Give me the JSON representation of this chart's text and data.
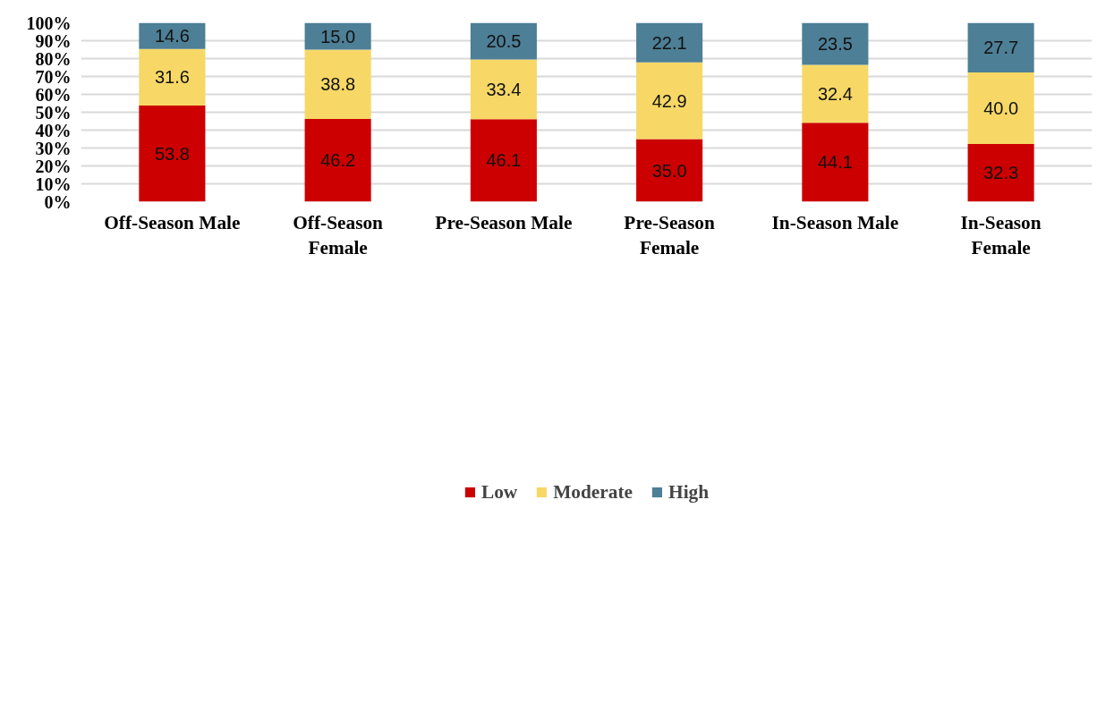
{
  "chart_data": {
    "type": "bar",
    "stacked": true,
    "categories": [
      "Off-Season Male",
      "Off-Season Female",
      "Pre-Season Male",
      "Pre-Season Female",
      "In-Season Male",
      "In-Season Female"
    ],
    "series": [
      {
        "name": "Low",
        "color": "#cc0000",
        "values": [
          53.8,
          46.2,
          46.1,
          35.0,
          44.1,
          32.3
        ],
        "value_labels": [
          "53.8",
          "46.2",
          "46.1",
          "35.0",
          "44.1",
          "32.3"
        ]
      },
      {
        "name": "Moderate",
        "color": "#f7d866",
        "values": [
          31.6,
          38.8,
          33.4,
          42.9,
          32.4,
          40.0
        ],
        "value_labels": [
          "31.6",
          "38.8",
          "33.4",
          "42.9",
          "32.4",
          "40.0"
        ]
      },
      {
        "name": "High",
        "color": "#4d7f96",
        "values": [
          14.6,
          15.0,
          20.5,
          22.1,
          23.5,
          27.7
        ],
        "value_labels": [
          "14.6",
          "15.0",
          "20.5",
          "22.1",
          "23.5",
          "27.7"
        ]
      }
    ],
    "ylim": [
      0,
      100
    ],
    "yticks": [
      {
        "value": 0,
        "label": "0%"
      },
      {
        "value": 10,
        "label": "10%"
      },
      {
        "value": 20,
        "label": "20%"
      },
      {
        "value": 30,
        "label": "30%"
      },
      {
        "value": 40,
        "label": "40%"
      },
      {
        "value": 50,
        "label": "50%"
      },
      {
        "value": 60,
        "label": "60%"
      },
      {
        "value": 70,
        "label": "70%"
      },
      {
        "value": 80,
        "label": "80%"
      },
      {
        "value": 90,
        "label": "90%"
      },
      {
        "value": 100,
        "label": "100%"
      }
    ],
    "grid": "y",
    "legend": "bottom"
  }
}
